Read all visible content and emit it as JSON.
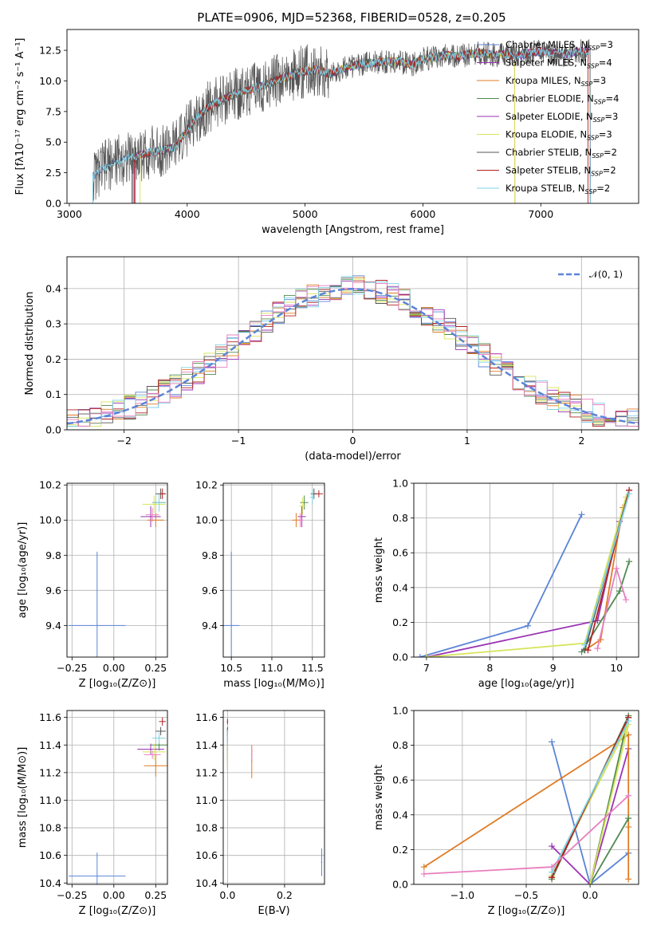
{
  "chart_data": [
    {
      "type": "line",
      "title": "PLATE=0906, MJD=52368, FIBERID=0528, z=0.205",
      "xlabel": "wavelength [Angstrom, rest frame]",
      "ylabel": "Flux [fλ10⁻¹⁷ erg cm⁻² s⁻¹ A⁻¹]",
      "xlim": [
        2980,
        7830
      ],
      "ylim": [
        0,
        14.2
      ],
      "xticks": [
        "3000",
        "4000",
        "5000",
        "6000",
        "7000"
      ],
      "yticks": [
        "0.0",
        "2.5",
        "5.0",
        "7.5",
        "10.0",
        "12.5"
      ],
      "legend_position": "right",
      "legend": [
        {
          "label": "Chabrier MILES, N",
          "sub": "SSP",
          "suffix": "=3",
          "color": "#5b84d6"
        },
        {
          "label": "Salpeter MILES, N",
          "sub": "SSP",
          "suffix": "=4",
          "color": "#9b33b5"
        },
        {
          "label": "Kroupa MILES, N",
          "sub": "SSP",
          "suffix": "=3",
          "color": "#e07b24"
        },
        {
          "label": "Chabrier ELODIE, N",
          "sub": "SSP",
          "suffix": "=4",
          "color": "#4f8a4f"
        },
        {
          "label": "Salpeter ELODIE, N",
          "sub": "SSP",
          "suffix": "=3",
          "color": "#9b33b5"
        },
        {
          "label": "Kroupa ELODIE, N",
          "sub": "SSP",
          "suffix": "=3",
          "color": "#d6e45a"
        },
        {
          "label": "Chabrier STELIB, N",
          "sub": "SSP",
          "suffix": "=2",
          "color": "#555555"
        },
        {
          "label": "Salpeter STELIB, N",
          "sub": "SSP",
          "suffix": "=2",
          "color": "#b22222"
        },
        {
          "label": "Kroupa STELIB, N",
          "sub": "SSP",
          "suffix": "=2",
          "color": "#7fd3e6"
        }
      ],
      "continuum": {
        "x": [
          3200,
          3300,
          3400,
          3500,
          3600,
          3700,
          3800,
          3900,
          4000,
          4100,
          4200,
          4300,
          4400,
          4500,
          4600,
          4700,
          4800,
          4900,
          5000,
          5100,
          5200,
          5300,
          5400,
          5500,
          5600,
          5700,
          5800,
          5900,
          6000,
          6100,
          6200,
          6300,
          6400,
          6500,
          6600,
          6700,
          6800,
          6900,
          7000,
          7100,
          7200,
          7300,
          7400,
          7500
        ],
        "y": [
          2.2,
          3.0,
          3.5,
          3.7,
          3.9,
          4.2,
          4.4,
          4.6,
          6.0,
          7.2,
          8.0,
          8.5,
          8.9,
          9.2,
          9.5,
          9.8,
          10.2,
          10.5,
          10.8,
          10.9,
          10.6,
          10.9,
          11.2,
          11.4,
          11.5,
          11.6,
          11.6,
          11.3,
          11.8,
          11.9,
          12.1,
          12.0,
          12.2,
          12.3,
          12.1,
          12.2,
          12.0,
          12.3,
          12.4,
          12.3,
          12.1,
          12.4,
          12.5,
          12.3
        ]
      }
    },
    {
      "type": "bar",
      "xlabel": "(data-model)/error",
      "ylabel": "Normed distribution",
      "xlim": [
        -2.5,
        2.5
      ],
      "ylim": [
        0,
        0.49
      ],
      "xticks": [
        "−2",
        "−1",
        "0",
        "1",
        "2"
      ],
      "yticks": [
        "0.0",
        "0.1",
        "0.2",
        "0.3",
        "0.4"
      ],
      "legend": [
        {
          "label": "𝒩(0, 1)",
          "color": "#5b84d6"
        }
      ],
      "bin_width": 0.1
    },
    {
      "type": "scatter",
      "xlabel": "Z [log₁₀(Z/Z⊙)]",
      "ylabel": "age  [log₁₀(age/yr)]",
      "xlim": [
        -0.28,
        0.32
      ],
      "ylim": [
        9.22,
        10.21
      ],
      "xticks": [
        "−0.25",
        "0.00",
        "0.25"
      ],
      "yticks": [
        "9.4",
        "9.6",
        "9.8",
        "10.0",
        "10.2"
      ]
    },
    {
      "type": "scatter",
      "xlabel": "mass [log₁₀(M/M⊙)]",
      "xlim": [
        10.4,
        11.65
      ],
      "ylim": [
        9.22,
        10.21
      ],
      "xticks": [
        "10.5",
        "11.0",
        "11.5"
      ],
      "yticks": [
        "9.4",
        "9.6",
        "9.8",
        "10.0",
        "10.2"
      ]
    },
    {
      "type": "line",
      "xlabel": "age  [log₁₀(age/yr)]",
      "ylabel": "mass weight",
      "xlim": [
        6.8,
        10.35
      ],
      "ylim": [
        0,
        1
      ],
      "xticks": [
        "7",
        "8",
        "9",
        "10"
      ],
      "yticks": [
        "0.0",
        "0.2",
        "0.4",
        "0.6",
        "0.8",
        "1.0"
      ],
      "series": [
        {
          "color": "#5b84d6",
          "x": [
            6.9,
            8.6,
            9.45
          ],
          "y": [
            0.0,
            0.18,
            0.82
          ]
        },
        {
          "color": "#9b33b5",
          "x": [
            7.0,
            9.7,
            10.05
          ],
          "y": [
            0.0,
            0.21,
            0.78
          ]
        },
        {
          "color": "#e07b24",
          "x": [
            9.5,
            9.75,
            10.1
          ],
          "y": [
            0.04,
            0.1,
            0.86
          ]
        },
        {
          "color": "#4f8a4f",
          "x": [
            9.45,
            10.05,
            10.2
          ],
          "y": [
            0.03,
            0.38,
            0.55
          ]
        },
        {
          "color": "#d6e45a",
          "x": [
            7.0,
            9.5,
            10.15
          ],
          "y": [
            0.0,
            0.08,
            0.92
          ]
        },
        {
          "color": "#555555",
          "x": [
            9.5,
            10.2
          ],
          "y": [
            0.04,
            0.96
          ]
        },
        {
          "color": "#b22222",
          "x": [
            9.55,
            10.2
          ],
          "y": [
            0.04,
            0.96
          ]
        },
        {
          "color": "#7fd3e6",
          "x": [
            9.5,
            10.2
          ],
          "y": [
            0.07,
            0.94
          ]
        },
        {
          "color": "#e87fbf",
          "x": [
            9.7,
            10.0,
            10.15
          ],
          "y": [
            0.05,
            0.51,
            0.33
          ]
        }
      ]
    },
    {
      "type": "scatter",
      "xlabel": "Z [log₁₀(Z/Z⊙)]",
      "ylabel": "mass [log₁₀(M/M⊙)]",
      "xlim": [
        -0.28,
        0.32
      ],
      "ylim": [
        10.39,
        11.65
      ],
      "xticks": [
        "−0.25",
        "0.00",
        "0.25"
      ],
      "yticks": [
        "10.4",
        "10.6",
        "10.8",
        "11.0",
        "11.2",
        "11.4",
        "11.6"
      ]
    },
    {
      "type": "scatter",
      "xlabel": "E(B-V)",
      "xlim": [
        -0.015,
        0.34
      ],
      "ylim": [
        10.39,
        11.65
      ],
      "xticks": [
        "0.0",
        "0.2"
      ],
      "yticks": [
        "10.4",
        "10.6",
        "10.8",
        "11.0",
        "11.2",
        "11.4",
        "11.6"
      ]
    },
    {
      "type": "line",
      "xlabel": "Z [log₁₀(Z/Z⊙)]",
      "ylabel": "mass weight",
      "xlim": [
        -1.38,
        0.38
      ],
      "ylim": [
        0,
        1
      ],
      "xticks": [
        "−1.0",
        "−0.5",
        "0.0"
      ],
      "yticks": [
        "0.0",
        "0.2",
        "0.4",
        "0.6",
        "0.8",
        "1.0"
      ],
      "series": [
        {
          "color": "#5b84d6",
          "x": [
            -0.3,
            0.0,
            0.3
          ],
          "y": [
            0.82,
            0.0,
            0.18
          ]
        },
        {
          "color": "#9b33b5",
          "x": [
            -0.3,
            0.0,
            0.3
          ],
          "y": [
            0.22,
            0.0,
            0.78
          ]
        },
        {
          "color": "#e07b24",
          "x": [
            -1.3,
            0.3,
            0.3,
            0.3
          ],
          "y": [
            0.1,
            0.86,
            0.33,
            0.03
          ]
        },
        {
          "color": "#4f8a4f",
          "x": [
            -0.3,
            0.3,
            0.0,
            0.3
          ],
          "y": [
            0.03,
            0.97,
            0.0,
            0.38
          ]
        },
        {
          "color": "#d6e45a",
          "x": [
            -0.3,
            0.3,
            0.0
          ],
          "y": [
            0.05,
            0.92,
            0.0
          ]
        },
        {
          "color": "#555555",
          "x": [
            -0.3,
            0.3
          ],
          "y": [
            0.04,
            0.96
          ]
        },
        {
          "color": "#b22222",
          "x": [
            -0.3,
            0.3
          ],
          "y": [
            0.04,
            0.96
          ]
        },
        {
          "color": "#7fd3e6",
          "x": [
            -0.3,
            0.3
          ],
          "y": [
            0.07,
            0.94
          ]
        },
        {
          "color": "#e87fbf",
          "x": [
            -1.3,
            -0.3,
            0.3
          ],
          "y": [
            0.06,
            0.1,
            0.51
          ]
        }
      ]
    }
  ]
}
